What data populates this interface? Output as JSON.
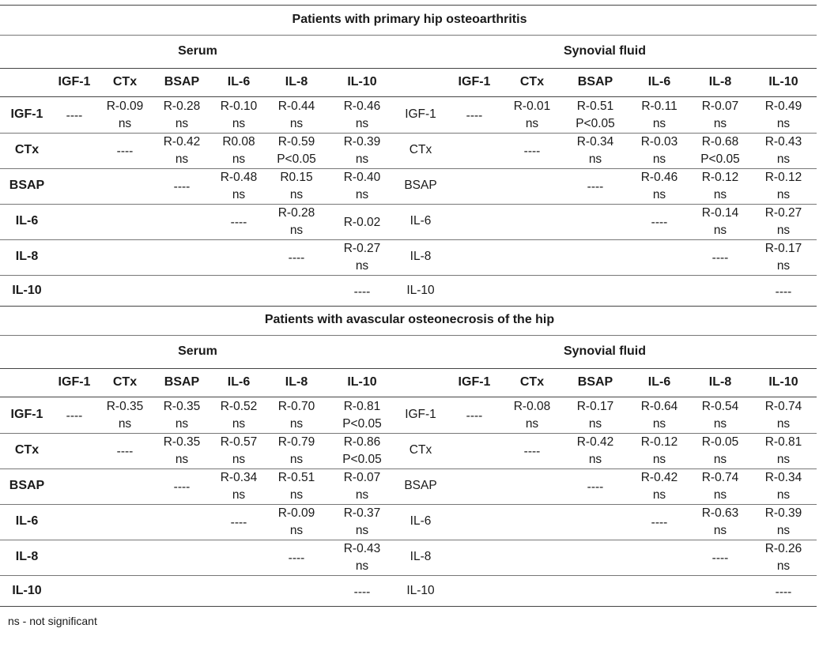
{
  "columns": [
    "IGF-1",
    "CTx",
    "BSAP",
    "IL-6",
    "IL-8",
    "IL-10"
  ],
  "rows": [
    "IGF-1",
    "CTx",
    "BSAP",
    "IL-6",
    "IL-8",
    "IL-10"
  ],
  "section_labels": {
    "serum": "Serum",
    "synovial": "Synovial fluid"
  },
  "sections": [
    {
      "title": "Patients with primary hip osteoarthritis",
      "serum": [
        [
          "----",
          [
            "R-0.09",
            "ns"
          ],
          [
            "R-0.28",
            "ns"
          ],
          [
            "R-0.10",
            "ns"
          ],
          [
            "R-0.44",
            "ns"
          ],
          [
            "R-0.46",
            "ns"
          ]
        ],
        [
          "",
          "----",
          [
            "R-0.42",
            "ns"
          ],
          [
            "R0.08",
            "ns"
          ],
          [
            "R-0.59",
            "P<0.05"
          ],
          [
            "R-0.39",
            "ns"
          ]
        ],
        [
          "",
          "",
          "----",
          [
            "R-0.48",
            "ns"
          ],
          [
            "R0.15",
            "ns"
          ],
          [
            "R-0.40",
            "ns"
          ]
        ],
        [
          "",
          "",
          "",
          "----",
          [
            "R-0.28",
            "ns"
          ],
          "R-0.02"
        ],
        [
          "",
          "",
          "",
          "",
          "----",
          [
            "R-0.27",
            "ns"
          ]
        ],
        [
          "",
          "",
          "",
          "",
          "",
          "----"
        ]
      ],
      "synovial": [
        [
          "----",
          [
            "R-0.01",
            "ns"
          ],
          [
            "R-0.51",
            "P<0.05"
          ],
          [
            "R-0.11",
            "ns"
          ],
          [
            "R-0.07",
            "ns"
          ],
          [
            "R-0.49",
            "ns"
          ]
        ],
        [
          "",
          "----",
          [
            "R-0.34",
            "ns"
          ],
          [
            "R-0.03",
            "ns"
          ],
          [
            "R-0.68",
            "P<0.05"
          ],
          [
            "R-0.43",
            "ns"
          ]
        ],
        [
          "",
          "",
          "----",
          [
            "R-0.46",
            "ns"
          ],
          [
            "R-0.12",
            "ns"
          ],
          [
            "R-0.12",
            "ns"
          ]
        ],
        [
          "",
          "",
          "",
          "----",
          [
            "R-0.14",
            "ns"
          ],
          [
            "R-0.27",
            "ns"
          ]
        ],
        [
          "",
          "",
          "",
          "",
          "----",
          [
            "R-0.17",
            "ns"
          ]
        ],
        [
          "",
          "",
          "",
          "",
          "",
          "----"
        ]
      ]
    },
    {
      "title": "Patients with avascular osteonecrosis of the hip",
      "serum": [
        [
          "----",
          [
            "R-0.35",
            "ns"
          ],
          [
            "R-0.35",
            "ns"
          ],
          [
            "R-0.52",
            "ns"
          ],
          [
            "R-0.70",
            "ns"
          ],
          [
            "R-0.81",
            "P<0.05"
          ]
        ],
        [
          "",
          "----",
          [
            "R-0.35",
            "ns"
          ],
          [
            "R-0.57",
            "ns"
          ],
          [
            "R-0.79",
            "ns"
          ],
          [
            "R-0.86",
            "P<0.05"
          ]
        ],
        [
          "",
          "",
          "----",
          [
            "R-0.34",
            "ns"
          ],
          [
            "R-0.51",
            "ns"
          ],
          [
            "R-0.07",
            "ns"
          ]
        ],
        [
          "",
          "",
          "",
          "----",
          [
            "R-0.09",
            "ns"
          ],
          [
            "R-0.37",
            "ns"
          ]
        ],
        [
          "",
          "",
          "",
          "",
          "----",
          [
            "R-0.43",
            "ns"
          ]
        ],
        [
          "",
          "",
          "",
          "",
          "",
          "----"
        ]
      ],
      "synovial": [
        [
          "----",
          [
            "R-0.08",
            "ns"
          ],
          [
            "R-0.17",
            "ns"
          ],
          [
            "R-0.64",
            "ns"
          ],
          [
            "R-0.54",
            "ns"
          ],
          [
            "R-0.74",
            "ns"
          ]
        ],
        [
          "",
          "----",
          [
            "R-0.42",
            "ns"
          ],
          [
            "R-0.12",
            "ns"
          ],
          [
            "R-0.05",
            "ns"
          ],
          [
            "R-0.81",
            "ns"
          ]
        ],
        [
          "",
          "",
          "----",
          [
            "R-0.42",
            "ns"
          ],
          [
            "R-0.74",
            "ns"
          ],
          [
            "R-0.34",
            "ns"
          ]
        ],
        [
          "",
          "",
          "",
          "----",
          [
            "R-0.63",
            "ns"
          ],
          [
            "R-0.39",
            "ns"
          ]
        ],
        [
          "",
          "",
          "",
          "",
          "----",
          [
            "R-0.26",
            "ns"
          ]
        ],
        [
          "",
          "",
          "",
          "",
          "",
          "----"
        ]
      ]
    }
  ],
  "footnote": "ns - not significant"
}
